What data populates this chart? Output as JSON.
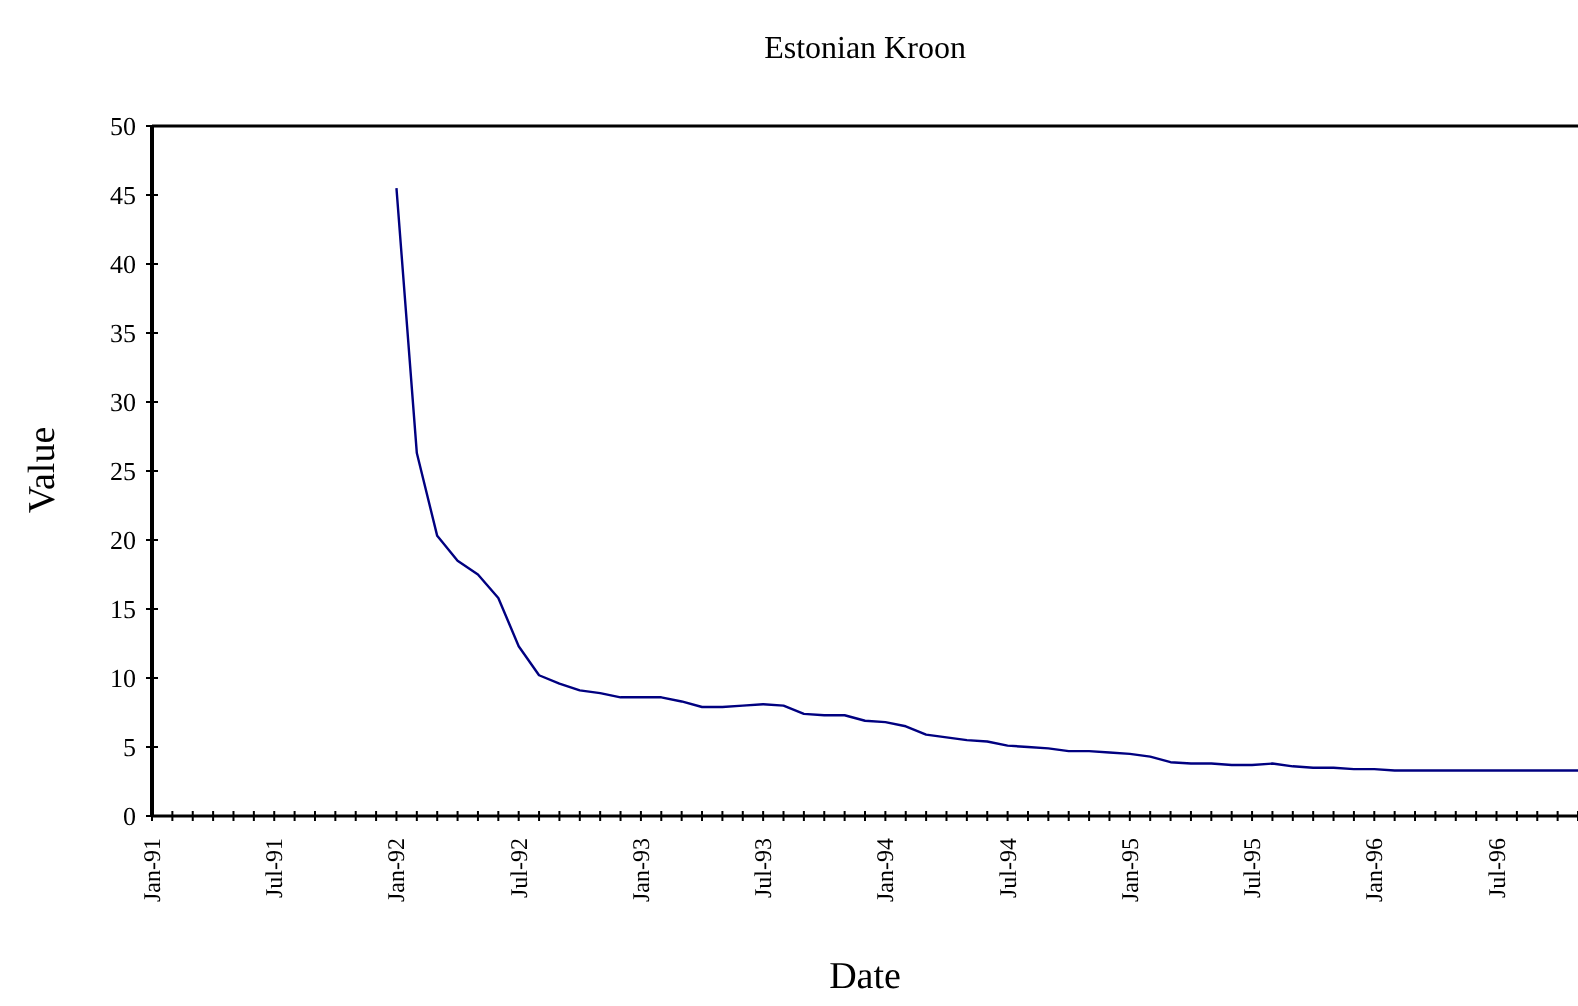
{
  "chart_data": {
    "type": "line",
    "title": "Estonian Kroon",
    "xlabel": "Date",
    "ylabel": "Value",
    "x": [
      "1992-01",
      "1992-02",
      "1992-03",
      "1992-04",
      "1992-05",
      "1992-06",
      "1992-07",
      "1992-08",
      "1992-09",
      "1992-10",
      "1992-11",
      "1992-12",
      "1993-01",
      "1993-02",
      "1993-03",
      "1993-04",
      "1993-05",
      "1993-06",
      "1993-07",
      "1993-08",
      "1993-09",
      "1993-10",
      "1993-11",
      "1993-12",
      "1994-01",
      "1994-02",
      "1994-03",
      "1994-04",
      "1994-05",
      "1994-06",
      "1994-07",
      "1994-08",
      "1994-09",
      "1994-10",
      "1994-11",
      "1994-12",
      "1995-01",
      "1995-02",
      "1995-03",
      "1995-04",
      "1995-05",
      "1995-06",
      "1995-07",
      "1995-08",
      "1995-09",
      "1995-10",
      "1995-11",
      "1995-12",
      "1996-01",
      "1996-02",
      "1996-03",
      "1996-04",
      "1996-05",
      "1996-06",
      "1996-07",
      "1996-08",
      "1996-09",
      "1996-10",
      "1996-11"
    ],
    "series": [
      {
        "color": "#000080",
        "values": [
          45.5,
          26.3,
          20.3,
          18.5,
          17.5,
          15.8,
          12.3,
          10.2,
          9.6,
          9.1,
          8.9,
          8.6,
          8.6,
          8.6,
          8.3,
          7.9,
          7.9,
          8.0,
          8.1,
          8.0,
          7.4,
          7.3,
          7.3,
          6.9,
          6.8,
          6.5,
          5.9,
          5.7,
          5.5,
          5.4,
          5.1,
          5.0,
          4.9,
          4.7,
          4.7,
          4.6,
          4.5,
          4.3,
          3.9,
          3.8,
          3.8,
          3.7,
          3.7,
          3.8,
          3.6,
          3.5,
          3.5,
          3.4,
          3.4,
          3.3,
          3.3,
          3.3,
          3.3,
          3.3,
          3.3,
          3.3,
          3.3,
          3.3,
          3.3
        ]
      }
    ],
    "xlim": [
      "1991-01",
      "1996-11"
    ],
    "xticks": [
      {
        "value": "1991-01",
        "label": "Jan-91"
      },
      {
        "value": "1991-02",
        "label": null
      },
      {
        "value": "1991-03",
        "label": null
      },
      {
        "value": "1991-04",
        "label": null
      },
      {
        "value": "1991-05",
        "label": null
      },
      {
        "value": "1991-06",
        "label": null
      },
      {
        "value": "1991-07",
        "label": "Jul-91"
      },
      {
        "value": "1991-08",
        "label": null
      },
      {
        "value": "1991-09",
        "label": null
      },
      {
        "value": "1991-10",
        "label": null
      },
      {
        "value": "1991-11",
        "label": null
      },
      {
        "value": "1991-12",
        "label": null
      },
      {
        "value": "1992-01",
        "label": "Jan-92"
      },
      {
        "value": "1992-02",
        "label": null
      },
      {
        "value": "1992-03",
        "label": null
      },
      {
        "value": "1992-04",
        "label": null
      },
      {
        "value": "1992-05",
        "label": null
      },
      {
        "value": "1992-06",
        "label": null
      },
      {
        "value": "1992-07",
        "label": "Jul-92"
      },
      {
        "value": "1992-08",
        "label": null
      },
      {
        "value": "1992-09",
        "label": null
      },
      {
        "value": "1992-10",
        "label": null
      },
      {
        "value": "1992-11",
        "label": null
      },
      {
        "value": "1992-12",
        "label": null
      },
      {
        "value": "1993-01",
        "label": "Jan-93"
      },
      {
        "value": "1993-02",
        "label": null
      },
      {
        "value": "1993-03",
        "label": null
      },
      {
        "value": "1993-04",
        "label": null
      },
      {
        "value": "1993-05",
        "label": null
      },
      {
        "value": "1993-06",
        "label": null
      },
      {
        "value": "1993-07",
        "label": "Jul-93"
      },
      {
        "value": "1993-08",
        "label": null
      },
      {
        "value": "1993-09",
        "label": null
      },
      {
        "value": "1993-10",
        "label": null
      },
      {
        "value": "1993-11",
        "label": null
      },
      {
        "value": "1993-12",
        "label": null
      },
      {
        "value": "1994-01",
        "label": "Jan-94"
      },
      {
        "value": "1994-02",
        "label": null
      },
      {
        "value": "1994-03",
        "label": null
      },
      {
        "value": "1994-04",
        "label": null
      },
      {
        "value": "1994-05",
        "label": null
      },
      {
        "value": "1994-06",
        "label": null
      },
      {
        "value": "1994-07",
        "label": "Jul-94"
      },
      {
        "value": "1994-08",
        "label": null
      },
      {
        "value": "1994-09",
        "label": null
      },
      {
        "value": "1994-10",
        "label": null
      },
      {
        "value": "1994-11",
        "label": null
      },
      {
        "value": "1994-12",
        "label": null
      },
      {
        "value": "1995-01",
        "label": "Jan-95"
      },
      {
        "value": "1995-02",
        "label": null
      },
      {
        "value": "1995-03",
        "label": null
      },
      {
        "value": "1995-04",
        "label": null
      },
      {
        "value": "1995-05",
        "label": null
      },
      {
        "value": "1995-06",
        "label": null
      },
      {
        "value": "1995-07",
        "label": "Jul-95"
      },
      {
        "value": "1995-08",
        "label": null
      },
      {
        "value": "1995-09",
        "label": null
      },
      {
        "value": "1995-10",
        "label": null
      },
      {
        "value": "1995-11",
        "label": null
      },
      {
        "value": "1995-12",
        "label": null
      },
      {
        "value": "1996-01",
        "label": "Jan-96"
      },
      {
        "value": "1996-02",
        "label": null
      },
      {
        "value": "1996-03",
        "label": null
      },
      {
        "value": "1996-04",
        "label": null
      },
      {
        "value": "1996-05",
        "label": null
      },
      {
        "value": "1996-06",
        "label": null
      },
      {
        "value": "1996-07",
        "label": "Jul-96"
      },
      {
        "value": "1996-08",
        "label": null
      },
      {
        "value": "1996-09",
        "label": null
      },
      {
        "value": "1996-10",
        "label": null
      },
      {
        "value": "1996-11",
        "label": null
      }
    ],
    "ylim": [
      0,
      50
    ],
    "yticks": [
      0,
      5,
      10,
      15,
      20,
      25,
      30,
      35,
      40,
      45,
      50
    ],
    "grid": false,
    "marker": "none",
    "line_style": "solid",
    "legend": false
  }
}
